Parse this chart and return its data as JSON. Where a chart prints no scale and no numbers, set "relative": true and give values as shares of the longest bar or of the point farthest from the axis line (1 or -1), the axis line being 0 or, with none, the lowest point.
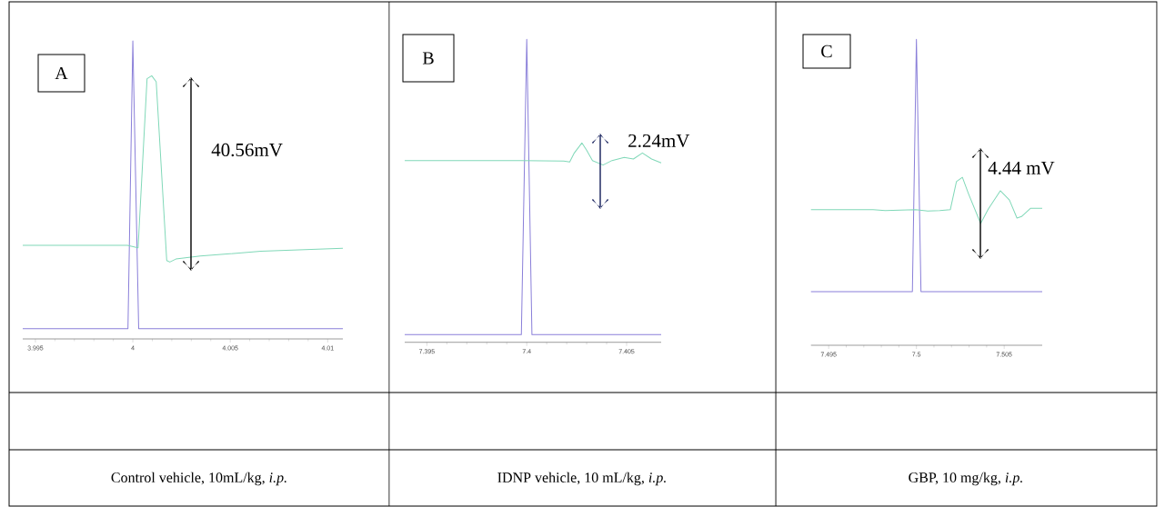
{
  "chart_data": [
    {
      "type": "line",
      "title": "A",
      "relative": true,
      "xlim": [
        3.99435,
        4.01078
      ],
      "xticks": [
        3.995,
        4,
        4.005,
        4.01
      ],
      "series": [
        {
          "color": "#8a7fd9",
          "x": [
            3.99435,
            3.99975,
            4.0,
            4.0003,
            4.01078
          ],
          "values": [
            0.034,
            0.034,
            1,
            0.034,
            0.034
          ]
        },
        {
          "color": "#80d8b8",
          "x": [
            3.99435,
            3.99972,
            4.00027,
            4.00073,
            4.00097,
            4.0012,
            4.00174,
            4.0019,
            4.00221,
            4.00346,
            4.00657,
            4.01078
          ],
          "values": [
            0.314,
            0.314,
            0.306,
            0.873,
            0.883,
            0.863,
            0.263,
            0.258,
            0.268,
            0.278,
            0.294,
            0.304
          ]
        }
      ],
      "annotations": [
        "40.56mV",
        "Control vehicle, 10mL/kg, *i.p.*"
      ]
    },
    {
      "type": "line",
      "title": "B",
      "relative": true,
      "xlim": [
        7.39389,
        7.40673
      ],
      "xticks": [
        7.395,
        7.4,
        7.405
      ],
      "series": [
        {
          "color": "#8a7fd9",
          "x": [
            7.39389,
            7.39973,
            7.4,
            7.40026,
            7.40673
          ],
          "values": [
            0.025,
            0.025,
            1,
            0.025,
            0.025
          ]
        },
        {
          "color": "#80d8b8",
          "x": [
            7.39389,
            7.39973,
            7.40185,
            7.40215,
            7.40238,
            7.40276,
            7.40299,
            7.40329,
            7.40382,
            7.40427,
            7.40488,
            7.40534,
            7.40579,
            7.40625,
            7.40673
          ],
          "values": [
            0.6,
            0.6,
            0.598,
            0.595,
            0.625,
            0.658,
            0.635,
            0.6,
            0.585,
            0.6,
            0.61,
            0.605,
            0.625,
            0.605,
            0.592
          ]
        }
      ],
      "annotations": [
        "2.24mV",
        "IDNP vehicle, 10 mL/kg, *i.p.*"
      ]
    },
    {
      "type": "line",
      "title": "C",
      "relative": true,
      "xlim": [
        7.49399,
        7.50717
      ],
      "xticks": [
        7.495,
        7.5,
        7.505
      ],
      "series": [
        {
          "color": "#8a7fd9",
          "x": [
            7.49399,
            7.49977,
            7.5,
            7.50026,
            7.50717
          ],
          "values": [
            0.175,
            0.175,
            1,
            0.175,
            0.175
          ]
        },
        {
          "color": "#80d8b8",
          "x": [
            7.49399,
            7.49753,
            7.49822,
            7.49995,
            7.50064,
            7.50133,
            7.50193,
            7.50228,
            7.50262,
            7.50297,
            7.50366,
            7.50409,
            7.50478,
            7.5053,
            7.50573,
            7.50599,
            7.50651,
            7.50717
          ],
          "values": [
            0.443,
            0.443,
            0.44,
            0.443,
            0.439,
            0.44,
            0.443,
            0.535,
            0.549,
            0.495,
            0.398,
            0.445,
            0.505,
            0.475,
            0.416,
            0.421,
            0.448,
            0.448
          ]
        }
      ],
      "annotations": [
        "4.44 mV",
        "GBP, 10 mg/kg, *i.p.*"
      ]
    }
  ]
}
